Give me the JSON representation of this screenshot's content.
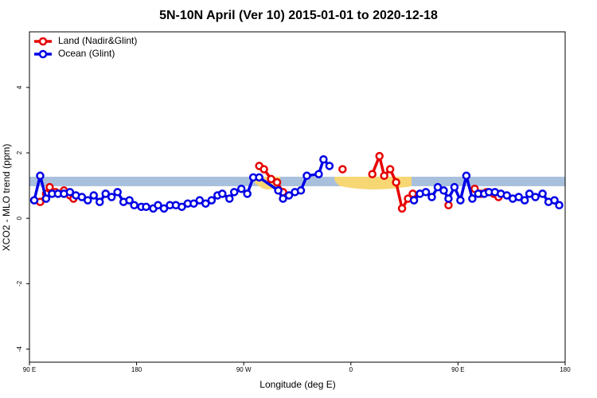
{
  "chart_data": {
    "type": "line",
    "title": "5N-10N April (Ver 10)   2015-01-01 to 2020-12-18",
    "x_label": "Longitude (deg E)",
    "y_label": "XCO2 - MLO trend (ppm)",
    "xlim": [
      90,
      540
    ],
    "ylim": [
      -4.4,
      5.7
    ],
    "xticks": [
      {
        "value": 90,
        "label": "90 E"
      },
      {
        "value": 180,
        "label": "180"
      },
      {
        "value": 270,
        "label": "90 W"
      },
      {
        "value": 360,
        "label": "0"
      },
      {
        "value": 450,
        "label": "90 E"
      },
      {
        "value": 540,
        "label": "180"
      }
    ],
    "yticks": [
      -4,
      -2,
      0,
      2,
      4
    ],
    "band": {
      "range": [
        0.98,
        1.27
      ],
      "color": "#a9c0dd"
    },
    "legend": "top-left",
    "series": [
      {
        "name": "Land (Nadir&Glint)",
        "color": "#e60000",
        "x": [
          99,
          104,
          107,
          112,
          119,
          124,
          127,
          278,
          283,
          287,
          293,
          298,
          303,
          349,
          353,
          373,
          378,
          384,
          388,
          393,
          398,
          403,
          408,
          412,
          438,
          442,
          460,
          464,
          469,
          474,
          480,
          484
        ],
        "values": [
          0.5,
          0.75,
          0.95,
          0.8,
          0.85,
          0.7,
          0.6,
          null,
          1.6,
          1.5,
          1.2,
          1.1,
          0.8,
          null,
          1.5,
          null,
          1.35,
          1.9,
          1.3,
          1.5,
          1.1,
          0.3,
          0.6,
          0.75,
          null,
          0.4,
          null,
          0.9,
          0.75,
          0.8,
          0.75,
          0.65
        ]
      },
      {
        "name": "Ocean (Glint)",
        "color": "#0000e6",
        "x": [
          94,
          99,
          104,
          109,
          114,
          119,
          124,
          129,
          134,
          139,
          144,
          149,
          154,
          159,
          164,
          169,
          174,
          178,
          184,
          188,
          194,
          198,
          203,
          208,
          213,
          218,
          223,
          228,
          233,
          238,
          243,
          248,
          252,
          258,
          262,
          268,
          273,
          278,
          283,
          299,
          303,
          308,
          313,
          318,
          323,
          333,
          337,
          342,
          410,
          413,
          418,
          423,
          428,
          433,
          438,
          442,
          447,
          452,
          457,
          462,
          467,
          472,
          476,
          481,
          486,
          491,
          496,
          501,
          506,
          510,
          515,
          521,
          526,
          531,
          535
        ],
        "values": [
          0.55,
          1.3,
          0.6,
          0.75,
          0.75,
          0.75,
          0.8,
          0.7,
          0.65,
          0.55,
          0.7,
          0.5,
          0.75,
          0.65,
          0.8,
          0.5,
          0.55,
          0.4,
          0.35,
          0.35,
          0.3,
          0.4,
          0.3,
          0.4,
          0.4,
          0.35,
          0.45,
          0.45,
          0.55,
          0.45,
          0.55,
          0.7,
          0.75,
          0.6,
          0.8,
          0.9,
          0.75,
          1.25,
          1.25,
          0.85,
          0.6,
          0.7,
          0.8,
          0.85,
          1.3,
          1.35,
          1.8,
          1.6,
          null,
          0.55,
          0.75,
          0.8,
          0.65,
          0.95,
          0.85,
          0.6,
          0.95,
          0.55,
          1.3,
          0.6,
          0.75,
          0.75,
          0.8,
          0.8,
          0.75,
          0.7,
          0.6,
          0.65,
          0.55,
          0.75,
          0.65,
          0.75,
          0.5,
          0.55,
          0.4
        ]
      }
    ]
  }
}
